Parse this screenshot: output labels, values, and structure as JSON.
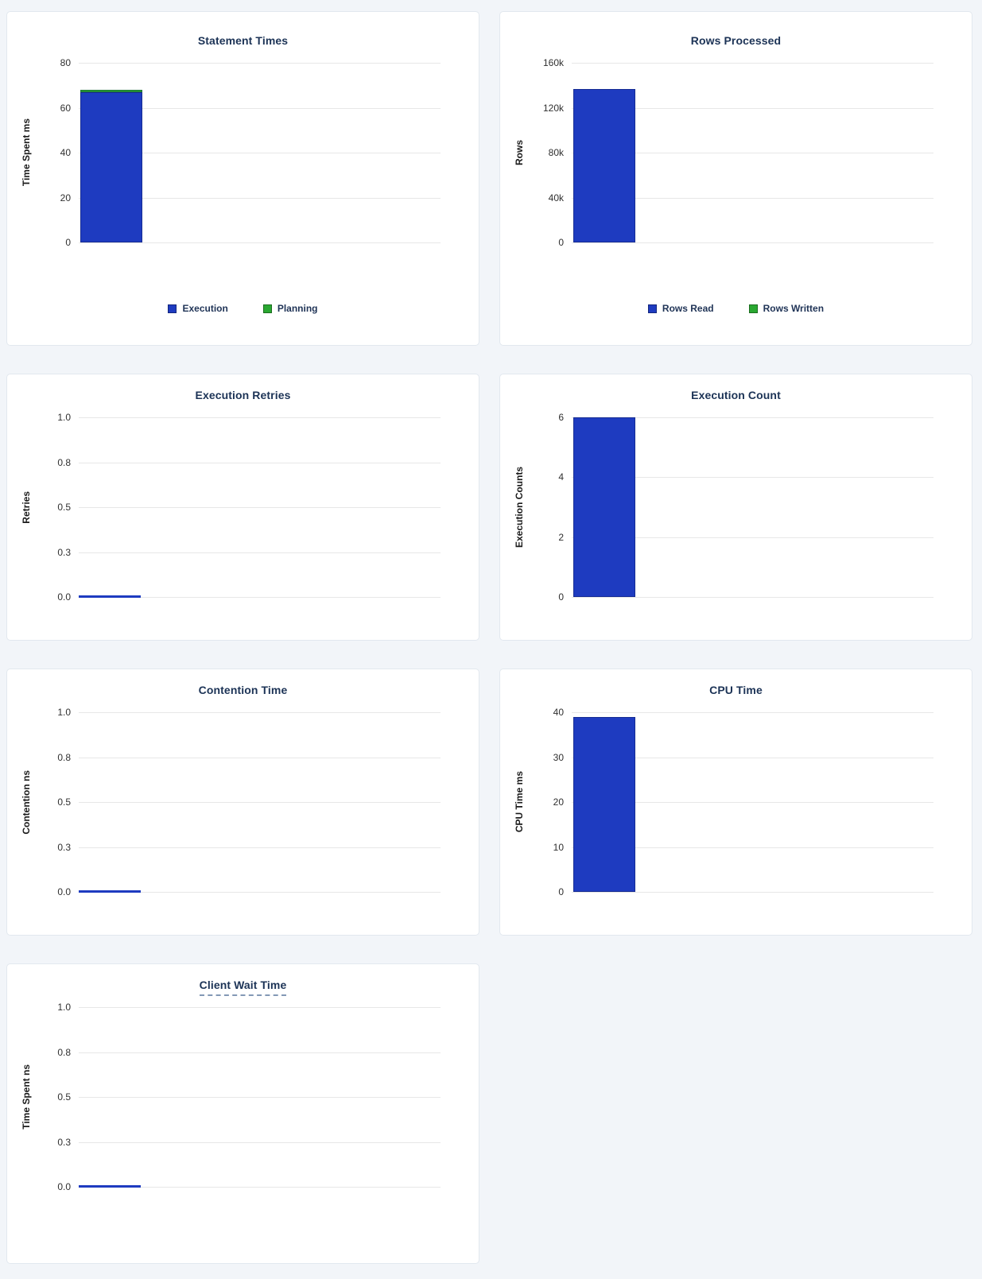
{
  "colors": {
    "page_background": "#f2f5f9",
    "card_background": "#ffffff",
    "card_border": "#e2e8ef",
    "title_text": "#1c3356",
    "tick_text": "#2f2f2f",
    "axis_label_text": "#1a1a1a",
    "legend_text": "#1f3356",
    "gridline": "#e7e7e7",
    "series_blue": "#1e3bc0",
    "series_green": "#2aa831",
    "tooltip_underline": "#8398b5"
  },
  "chart_data": [
    {
      "id": "statement-times",
      "type": "bar",
      "title": "Statement Times",
      "ylabel": "Time Spent ms",
      "ymax": 80,
      "ylim": [
        0,
        80
      ],
      "ytick_labels": [
        "80",
        "60",
        "40",
        "20",
        "0"
      ],
      "grid": true,
      "legend_position": "bottom",
      "series": [
        {
          "name": "Execution",
          "value": 67,
          "color": "blue"
        },
        {
          "name": "Planning",
          "value": 1,
          "color": "green"
        }
      ],
      "legend": [
        {
          "label": "Execution",
          "color": "blue"
        },
        {
          "label": "Planning",
          "color": "green"
        }
      ],
      "title_tooltip": false
    },
    {
      "id": "rows-processed",
      "type": "bar",
      "title": "Rows Processed",
      "ylabel": "Rows",
      "ymax": 160000,
      "ylim": [
        0,
        160000
      ],
      "ytick_labels": [
        "160k",
        "120k",
        "80k",
        "40k",
        "0"
      ],
      "grid": true,
      "legend_position": "bottom",
      "series": [
        {
          "name": "Rows Read",
          "value": 137000,
          "color": "blue"
        },
        {
          "name": "Rows Written",
          "value": 0,
          "color": "green"
        }
      ],
      "legend": [
        {
          "label": "Rows Read",
          "color": "blue"
        },
        {
          "label": "Rows Written",
          "color": "green"
        }
      ],
      "title_tooltip": false
    },
    {
      "id": "execution-retries",
      "type": "bar",
      "title": "Execution Retries",
      "ylabel": "Retries",
      "ymax": 1,
      "ylim": [
        0,
        1
      ],
      "ytick_labels": [
        "1.0",
        "0.8",
        "0.5",
        "0.3",
        "0.0"
      ],
      "grid": true,
      "series": [
        {
          "name": "Retries",
          "value": 0,
          "color": "blue"
        }
      ],
      "legend": [],
      "title_tooltip": false
    },
    {
      "id": "execution-count",
      "type": "bar",
      "title": "Execution Count",
      "ylabel": "Execution Counts",
      "ymax": 6,
      "ylim": [
        0,
        6
      ],
      "ytick_labels": [
        "6",
        "4",
        "2",
        "0"
      ],
      "grid": true,
      "series": [
        {
          "name": "Execution Count",
          "value": 6,
          "color": "blue"
        }
      ],
      "legend": [],
      "title_tooltip": false
    },
    {
      "id": "contention-time",
      "type": "bar",
      "title": "Contention Time",
      "ylabel": "Contention ns",
      "ymax": 1,
      "ylim": [
        0,
        1
      ],
      "ytick_labels": [
        "1.0",
        "0.8",
        "0.5",
        "0.3",
        "0.0"
      ],
      "grid": true,
      "series": [
        {
          "name": "Contention",
          "value": 0,
          "color": "blue"
        }
      ],
      "legend": [],
      "title_tooltip": false
    },
    {
      "id": "cpu-time",
      "type": "bar",
      "title": "CPU Time",
      "ylabel": "CPU Time ms",
      "ymax": 40,
      "ylim": [
        0,
        40
      ],
      "ytick_labels": [
        "40",
        "30",
        "20",
        "10",
        "0"
      ],
      "grid": true,
      "series": [
        {
          "name": "CPU Time",
          "value": 39,
          "color": "blue"
        }
      ],
      "legend": [],
      "title_tooltip": false
    },
    {
      "id": "client-wait-time",
      "type": "bar",
      "title": "Client Wait Time",
      "ylabel": "Time Spent ns",
      "ymax": 1,
      "ylim": [
        0,
        1
      ],
      "ytick_labels": [
        "1.0",
        "0.8",
        "0.5",
        "0.3",
        "0.0"
      ],
      "grid": true,
      "series": [
        {
          "name": "Client Wait",
          "value": 0,
          "color": "blue"
        }
      ],
      "legend": [],
      "title_tooltip": true
    }
  ]
}
